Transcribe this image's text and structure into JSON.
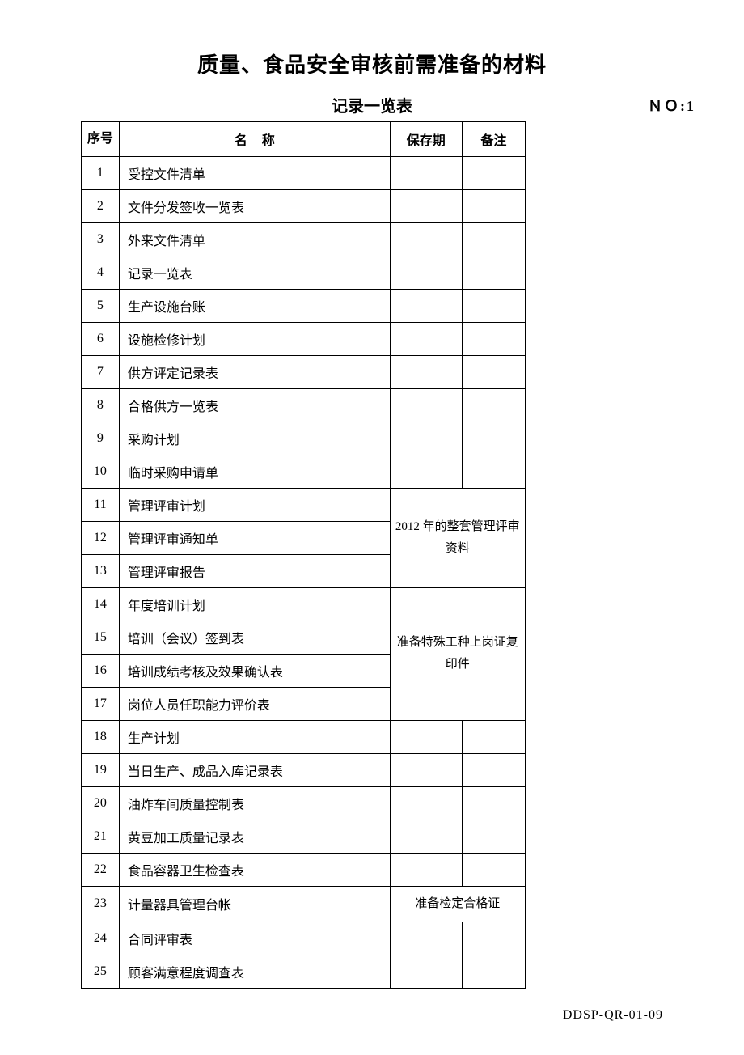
{
  "title": "质量、食品安全审核前需准备的材料",
  "subtitle": "记录一览表",
  "page_no_label": "ＮＯ:",
  "page_no_value": "1",
  "footer_code": "DDSP-QR-01-09",
  "headers": {
    "seq": "序号",
    "name": "名称",
    "period": "保存期",
    "remark": "备注"
  },
  "merged_remarks": {
    "group1": "2012 年的整套管理评审资料",
    "group2": "准备特殊工种上岗证复印件",
    "group3": "准备检定合格证"
  },
  "rows": [
    {
      "seq": "1",
      "name": "受控文件清单",
      "period": "",
      "remark": ""
    },
    {
      "seq": "2",
      "name": "文件分发签收一览表",
      "period": "",
      "remark": ""
    },
    {
      "seq": "3",
      "name": "外来文件清单",
      "period": "",
      "remark": ""
    },
    {
      "seq": "4",
      "name": "记录一览表",
      "period": "",
      "remark": ""
    },
    {
      "seq": "5",
      "name": "生产设施台账",
      "period": "",
      "remark": ""
    },
    {
      "seq": "6",
      "name": "设施检修计划",
      "period": "",
      "remark": ""
    },
    {
      "seq": "7",
      "name": "供方评定记录表",
      "period": "",
      "remark": ""
    },
    {
      "seq": "8",
      "name": "合格供方一览表",
      "period": "",
      "remark": ""
    },
    {
      "seq": "9",
      "name": "采购计划",
      "period": "",
      "remark": ""
    },
    {
      "seq": "10",
      "name": "临时采购申请单",
      "period": "",
      "remark": ""
    },
    {
      "seq": "11",
      "name": "管理评审计划",
      "period": "",
      "remark": ""
    },
    {
      "seq": "12",
      "name": "管理评审通知单",
      "period": "",
      "remark": ""
    },
    {
      "seq": "13",
      "name": "管理评审报告",
      "period": "",
      "remark": ""
    },
    {
      "seq": "14",
      "name": "年度培训计划",
      "period": "",
      "remark": ""
    },
    {
      "seq": "15",
      "name": "培训（会议）签到表",
      "period": "",
      "remark": ""
    },
    {
      "seq": "16",
      "name": "培训成绩考核及效果确认表",
      "period": "",
      "remark": ""
    },
    {
      "seq": "17",
      "name": "岗位人员任职能力评价表",
      "period": "",
      "remark": ""
    },
    {
      "seq": "18",
      "name": "生产计划",
      "period": "",
      "remark": ""
    },
    {
      "seq": "19",
      "name": "当日生产、成品入库记录表",
      "period": "",
      "remark": ""
    },
    {
      "seq": "20",
      "name": "油炸车间质量控制表",
      "period": "",
      "remark": ""
    },
    {
      "seq": "21",
      "name": "黄豆加工质量记录表",
      "period": "",
      "remark": ""
    },
    {
      "seq": "22",
      "name": "食品容器卫生检查表",
      "period": "",
      "remark": ""
    },
    {
      "seq": "23",
      "name": "计量器具管理台帐",
      "period": "",
      "remark": ""
    },
    {
      "seq": "24",
      "name": "合同评审表",
      "period": "",
      "remark": ""
    },
    {
      "seq": "25",
      "name": "顾客满意程度调查表",
      "period": "",
      "remark": ""
    }
  ]
}
